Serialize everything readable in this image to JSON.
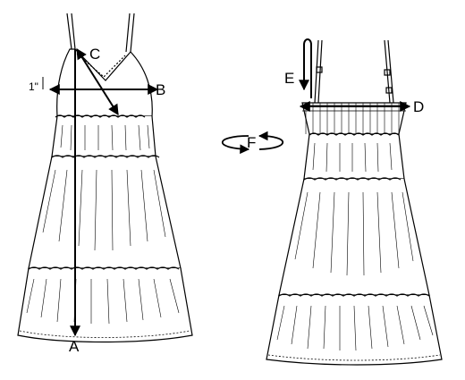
{
  "labels": {
    "a": "A",
    "b": "B",
    "c": "C",
    "d": "D",
    "e": "E",
    "f": "F",
    "inch": "1\""
  },
  "colors": {
    "ink": "#000000",
    "paper": "#ffffff"
  }
}
